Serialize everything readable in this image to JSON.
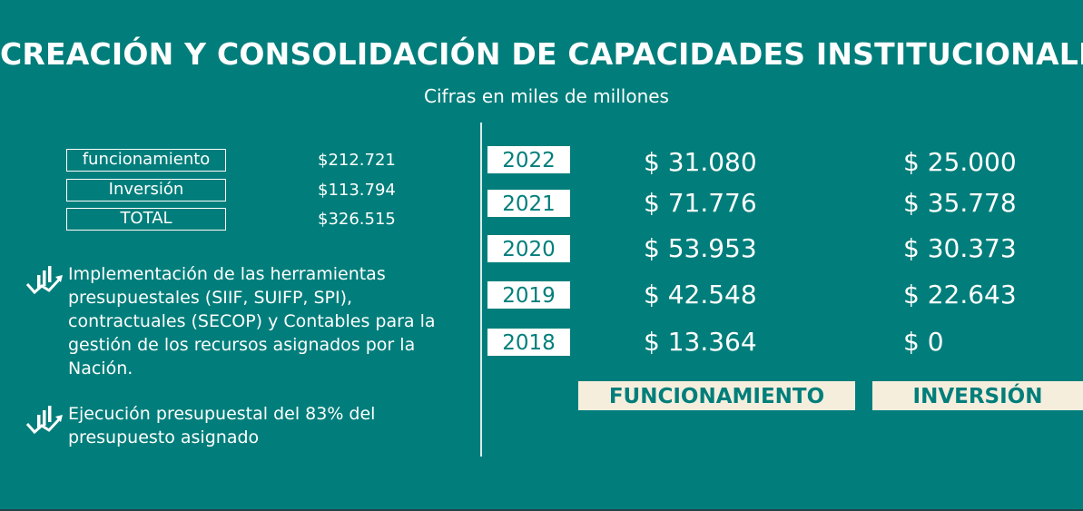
{
  "header": {
    "title": "CREACIÓN Y CONSOLIDACIÓN DE CAPACIDADES INSTITUCIONALES",
    "subtitle": "Cifras en miles de millones"
  },
  "summary": [
    {
      "label": "funcionamiento",
      "value": "$212.721"
    },
    {
      "label": "Inversión",
      "value": "$113.794"
    },
    {
      "label": "TOTAL",
      "value": "$326.515"
    }
  ],
  "bullets": [
    {
      "icon": "growth-chart-icon",
      "text": "Implementación de las herramientas presupuestales (SIIF, SUIFP, SPI), contractuales (SECOP) y Contables para la gestión de los recursos asignados por la Nación."
    },
    {
      "icon": "growth-chart-icon",
      "text": "Ejecución presupuestal del 83% del presupuesto asignado"
    }
  ],
  "table": {
    "rows": [
      {
        "year": "2022",
        "funcionamiento": "$ 31.080",
        "inversion": "$ 25.000"
      },
      {
        "year": "2021",
        "funcionamiento": "$ 71.776",
        "inversion": "$ 35.778"
      },
      {
        "year": "2020",
        "funcionamiento": "$ 53.953",
        "inversion": "$ 30.373"
      },
      {
        "year": "2019",
        "funcionamiento": "$ 42.548",
        "inversion": "$ 22.643"
      },
      {
        "year": "2018",
        "funcionamiento": "$ 13.364",
        "inversion": "$ 0"
      }
    ],
    "col_funcionamiento": "FUNCIONAMIENTO",
    "col_inversion": "INVERSIÓN"
  },
  "colors": {
    "background": "#017e7b",
    "label_fill": "#f6eedd",
    "text": "#ffffff"
  }
}
